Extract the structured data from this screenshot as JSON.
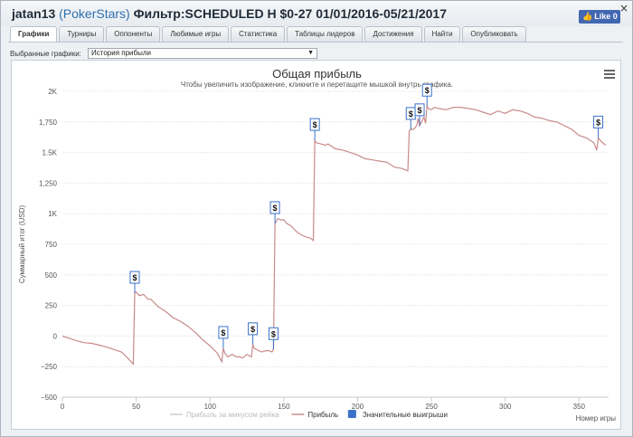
{
  "window": {
    "player": "jatan13",
    "site": "(PokerStars)",
    "filter": "Фильтр:SCHEDULED H $0-27 01/01/2016-05/21/2017",
    "close": "×",
    "like": "Like 0"
  },
  "tabs": [
    "Графики",
    "Турниры",
    "Оппоненты",
    "Любимые игры",
    "Статистика",
    "Таблицы лидеров",
    "Достижения",
    "Найти",
    "Опубликовать"
  ],
  "selector": {
    "label": "Выбранные графики:",
    "value": "История прибыли"
  },
  "chart_data": {
    "type": "line",
    "title": "Общая прибыль",
    "subtitle": "Чтобы увеличить изображение, кликните и перетащите мышкой внутрь графика.",
    "ylabel": "Суммарный итог (USD)",
    "xlabel": "Номер игры",
    "xlim": [
      0,
      370
    ],
    "ylim": [
      -500,
      2000
    ],
    "xticks": [
      0,
      50,
      100,
      150,
      200,
      250,
      300,
      350
    ],
    "yticks": [
      -500,
      -250,
      0,
      250,
      500,
      750,
      1000,
      1250,
      1500,
      1750,
      2000
    ],
    "ytick_labels": [
      "−500",
      "−250",
      "0",
      "250",
      "500",
      "750",
      "1K",
      "1,250",
      "1.5K",
      "1,750",
      "2K"
    ],
    "series": [
      {
        "name": "Прибыль",
        "color": "#c88a8a",
        "x": [
          0,
          5,
          10,
          15,
          20,
          25,
          30,
          35,
          40,
          45,
          48,
          49,
          50,
          52,
          55,
          58,
          60,
          65,
          70,
          75,
          80,
          85,
          90,
          95,
          100,
          105,
          108,
          109,
          110,
          112,
          115,
          118,
          120,
          122,
          125,
          128,
          129,
          130,
          133,
          135,
          138,
          140,
          142,
          143,
          144,
          146,
          148,
          150,
          152,
          155,
          158,
          160,
          163,
          165,
          168,
          170,
          171,
          172,
          175,
          178,
          180,
          185,
          190,
          195,
          200,
          205,
          210,
          215,
          220,
          225,
          230,
          234,
          235,
          236,
          238,
          240,
          241,
          242,
          245,
          246,
          247,
          248,
          250,
          252,
          255,
          260,
          265,
          270,
          275,
          280,
          285,
          290,
          295,
          300,
          305,
          310,
          315,
          320,
          325,
          330,
          335,
          340,
          345,
          350,
          355,
          360,
          362,
          363,
          365,
          368
        ],
        "y": [
          0,
          -20,
          -40,
          -55,
          -60,
          -75,
          -90,
          -110,
          -130,
          -190,
          -230,
          350,
          360,
          330,
          340,
          300,
          300,
          240,
          200,
          150,
          120,
          80,
          30,
          -30,
          -80,
          -140,
          -210,
          -100,
          -140,
          -170,
          -150,
          -170,
          -170,
          -180,
          -150,
          -170,
          -70,
          -100,
          -120,
          -130,
          -120,
          -120,
          -130,
          -110,
          920,
          960,
          950,
          950,
          920,
          900,
          860,
          840,
          820,
          810,
          800,
          780,
          1600,
          1580,
          1570,
          1560,
          1570,
          1530,
          1520,
          1500,
          1480,
          1450,
          1440,
          1430,
          1420,
          1380,
          1370,
          1350,
          1680,
          1690,
          1690,
          1720,
          1780,
          1720,
          1790,
          1740,
          1880,
          1860,
          1850,
          1870,
          1860,
          1850,
          1870,
          1870,
          1860,
          1850,
          1830,
          1810,
          1840,
          1820,
          1850,
          1840,
          1820,
          1790,
          1780,
          1760,
          1750,
          1720,
          1690,
          1640,
          1620,
          1580,
          1520,
          1620,
          1590,
          1560
        ]
      }
    ],
    "markers": [
      {
        "x": 49,
        "y": 350,
        "label": "$"
      },
      {
        "x": 109,
        "y": -100,
        "label": "$"
      },
      {
        "x": 129,
        "y": -70,
        "label": "$"
      },
      {
        "x": 144,
        "y": 920,
        "label": "$"
      },
      {
        "x": 143,
        "y": -110,
        "label": "$"
      },
      {
        "x": 171,
        "y": 1600,
        "label": "$"
      },
      {
        "x": 236,
        "y": 1690,
        "label": "$"
      },
      {
        "x": 242,
        "y": 1720,
        "label": "$"
      },
      {
        "x": 247,
        "y": 1880,
        "label": "$"
      },
      {
        "x": 363,
        "y": 1620,
        "label": "$"
      }
    ],
    "legend": [
      {
        "label": "Прибыль за минусом рейка",
        "color": "#cfcfcf",
        "kind": "line",
        "muted": true
      },
      {
        "label": "Прибыль",
        "color": "#c88a8a",
        "kind": "line",
        "muted": false
      },
      {
        "label": "Значительные выигрыши",
        "color": "#3a72c8",
        "kind": "box",
        "muted": false
      }
    ]
  }
}
